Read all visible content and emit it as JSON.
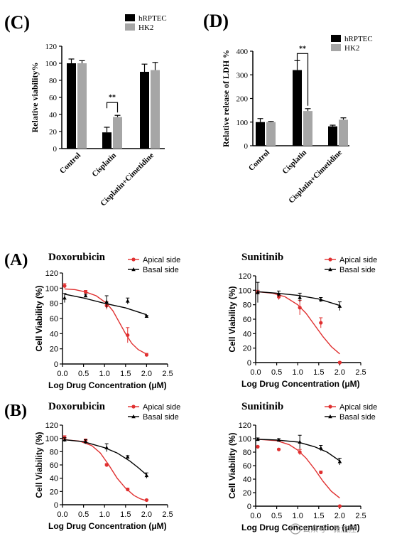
{
  "chart_data": [
    {
      "id": "C",
      "panel_label": "(C)",
      "type": "bar",
      "ylabel": "Relative viability%",
      "ylim": [
        0,
        120
      ],
      "yticks": [
        "0",
        "20",
        "40",
        "60",
        "80",
        "100",
        "120"
      ],
      "categories": [
        "Control",
        "Cisplatin",
        "Cisplatin+Cimetidine"
      ],
      "series": [
        {
          "name": "hRPTEC",
          "color": "#000000",
          "values": [
            100,
            19,
            90
          ],
          "errors": [
            5,
            6,
            9
          ]
        },
        {
          "name": "HK2",
          "color": "#a6a6a6",
          "values": [
            100,
            37,
            92
          ],
          "errors": [
            3,
            2,
            9
          ]
        }
      ],
      "annotation": "**",
      "legend_position": "top-right"
    },
    {
      "id": "D",
      "panel_label": "(D)",
      "type": "bar",
      "ylabel": "Relative release of LDH %",
      "ylim": [
        0,
        400
      ],
      "yticks": [
        "0",
        "100",
        "200",
        "300",
        "400"
      ],
      "categories": [
        "Control",
        "Cisplatin",
        "Cisplatin+Cimetidine"
      ],
      "series": [
        {
          "name": "hRPTEC",
          "color": "#000000",
          "values": [
            100,
            320,
            82
          ],
          "errors": [
            15,
            40,
            5
          ]
        },
        {
          "name": "HK2",
          "color": "#a6a6a6",
          "values": [
            100,
            147,
            110
          ],
          "errors": [
            3,
            10,
            8
          ]
        }
      ],
      "annotation": "**",
      "legend_position": "top-right"
    },
    {
      "id": "A1",
      "panel_label": "(A)",
      "type": "scatter",
      "title": "Doxorubicin",
      "xlabel": "Log Drug Concentration (μM)",
      "ylabel": "Cell Viability (%)",
      "xlim": [
        0,
        2.5
      ],
      "ylim": [
        0,
        120
      ],
      "xticks": [
        "0.0",
        "0.5",
        "1.0",
        "1.5",
        "2.0",
        "2.5"
      ],
      "yticks": [
        "0",
        "20",
        "40",
        "60",
        "80",
        "100",
        "120"
      ],
      "series": [
        {
          "name": "Apical side",
          "color": "#e03030",
          "marker": "circle",
          "x": [
            0.05,
            0.55,
            1.05,
            1.55,
            2.0
          ],
          "y": [
            103,
            95,
            77,
            38,
            12
          ],
          "errors": [
            3,
            2,
            5,
            10,
            2
          ],
          "curve_x": [
            0.05,
            0.3,
            0.55,
            0.8,
            1.05,
            1.2,
            1.35,
            1.5,
            1.65,
            1.8,
            2.0
          ],
          "curve_y": [
            99,
            98,
            95,
            90,
            80,
            70,
            55,
            40,
            27,
            19,
            13
          ]
        },
        {
          "name": "Basal side",
          "color": "#000000",
          "marker": "triangle",
          "x": [
            0.05,
            0.55,
            1.05,
            1.55,
            2.0
          ],
          "y": [
            87,
            90,
            82,
            83,
            63
          ],
          "errors": [
            6,
            2,
            8,
            4,
            1
          ],
          "curve_x": [
            0.05,
            0.5,
            1.0,
            1.5,
            2.0
          ],
          "curve_y": [
            92,
            87,
            80,
            74,
            65
          ]
        }
      ]
    },
    {
      "id": "A2",
      "type": "scatter",
      "title": "Sunitinib",
      "xlabel": "Log Drug Concentration (μM)",
      "ylabel": "Cell Viability (%)",
      "xlim": [
        0,
        2.5
      ],
      "ylim": [
        0,
        120
      ],
      "xticks": [
        "0.0",
        "0.5",
        "1.0",
        "1.5",
        "2.0",
        "2.5"
      ],
      "yticks": [
        "0",
        "20",
        "40",
        "60",
        "80",
        "100",
        "120"
      ],
      "series": [
        {
          "name": "Apical side",
          "color": "#e03030",
          "marker": "circle",
          "x": [
            0.05,
            0.55,
            1.05,
            1.55,
            2.0
          ],
          "y": [
            97,
            91,
            76,
            55,
            0
          ],
          "errors": [
            3,
            4,
            10,
            7,
            1
          ],
          "curve_x": [
            0.05,
            0.4,
            0.7,
            1.0,
            1.2,
            1.4,
            1.6,
            1.8,
            2.0
          ],
          "curve_y": [
            98,
            96,
            91,
            80,
            68,
            52,
            36,
            22,
            12
          ]
        },
        {
          "name": "Basal side",
          "color": "#000000",
          "marker": "triangle",
          "x": [
            0.05,
            0.55,
            1.05,
            1.55,
            2.0
          ],
          "y": [
            97,
            95,
            90,
            87,
            78
          ],
          "errors": [
            14,
            4,
            6,
            3,
            6
          ],
          "curve_x": [
            0.05,
            0.5,
            1.0,
            1.5,
            2.0
          ],
          "curve_y": [
            98,
            96,
            93,
            88,
            79
          ]
        }
      ]
    },
    {
      "id": "B1",
      "panel_label": "(B)",
      "type": "scatter",
      "title": "Doxorubicin",
      "xlabel": "Log Drug Concentration (μM)",
      "ylabel": "Cell Viability (%)",
      "xlim": [
        0,
        2.5
      ],
      "ylim": [
        0,
        120
      ],
      "xticks": [
        "0.0",
        "0.5",
        "1.0",
        "1.5",
        "2.0",
        "2.5"
      ],
      "yticks": [
        "0",
        "20",
        "40",
        "60",
        "80",
        "100",
        "120"
      ],
      "series": [
        {
          "name": "Apical side",
          "color": "#e03030",
          "marker": "circle",
          "x": [
            0.05,
            0.55,
            1.05,
            1.55,
            2.0
          ],
          "y": [
            101,
            97,
            60,
            23,
            7
          ],
          "errors": [
            3,
            2,
            2,
            2,
            1
          ],
          "curve_x": [
            0.05,
            0.4,
            0.7,
            0.9,
            1.1,
            1.3,
            1.5,
            1.7,
            1.85,
            2.0
          ],
          "curve_y": [
            98,
            96,
            89,
            78,
            60,
            40,
            25,
            14,
            9,
            6
          ]
        },
        {
          "name": "Basal side",
          "color": "#000000",
          "marker": "triangle",
          "x": [
            0.05,
            0.55,
            1.05,
            1.55,
            2.0
          ],
          "y": [
            98,
            95,
            86,
            72,
            44
          ],
          "errors": [
            3,
            3,
            6,
            2,
            4
          ],
          "curve_x": [
            0.05,
            0.5,
            1.0,
            1.3,
            1.6,
            1.8,
            2.0
          ],
          "curve_y": [
            98,
            95,
            86,
            78,
            66,
            56,
            45
          ]
        }
      ]
    },
    {
      "id": "B2",
      "type": "scatter",
      "title": "Sunitinib",
      "xlabel": "Log Drug Concentration (μM)",
      "ylabel": "Cell Viability (%)",
      "xlim": [
        0,
        2.5
      ],
      "ylim": [
        0,
        120
      ],
      "xticks": [
        "0.0",
        "0.5",
        "1.0",
        "1.5",
        "2.0",
        "2.5"
      ],
      "yticks": [
        "0",
        "20",
        "40",
        "60",
        "80",
        "100",
        "120"
      ],
      "series": [
        {
          "name": "Apical side",
          "color": "#e03030",
          "marker": "circle",
          "x": [
            0.05,
            0.55,
            1.05,
            1.55,
            2.0
          ],
          "y": [
            88,
            84,
            80,
            50,
            0
          ],
          "errors": [
            1,
            1,
            4,
            2,
            1
          ],
          "curve_x": [
            0.05,
            0.5,
            0.8,
            1.0,
            1.2,
            1.4,
            1.6,
            1.8,
            2.0
          ],
          "curve_y": [
            99,
            97,
            91,
            83,
            71,
            55,
            37,
            22,
            12
          ]
        },
        {
          "name": "Basal side",
          "color": "#000000",
          "marker": "triangle",
          "x": [
            0.05,
            0.55,
            1.05,
            1.55,
            2.0
          ],
          "y": [
            99,
            98,
            95,
            86,
            66
          ],
          "errors": [
            2,
            2,
            10,
            4,
            5
          ],
          "curve_x": [
            0.05,
            0.5,
            1.0,
            1.4,
            1.7,
            2.0
          ],
          "curve_y": [
            99,
            98,
            95,
            88,
            80,
            67
          ]
        }
      ]
    }
  ],
  "watermark_text": "公众号 · 微流控"
}
